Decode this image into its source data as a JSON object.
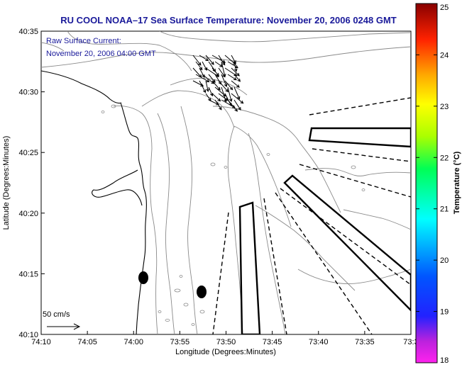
{
  "title": "RU COOL  NOAA–17  Sea Surface Temperature:  November 20, 2006 0248 GMT",
  "annotation": {
    "line1": "Raw Surface Current:",
    "line2": "November 20, 2006 04:00 GMT"
  },
  "scale": {
    "label": "50 cm/s"
  },
  "axes": {
    "xlabel": "Longitude (Degrees:Minutes)",
    "ylabel": "Latitude (Degrees:Minutes)",
    "x_ticks": [
      "74:10",
      "74:05",
      "74:00",
      "73:55",
      "73:50",
      "73:45",
      "73:40",
      "73:35",
      "73:3"
    ],
    "y_ticks": [
      "40:35",
      "40:30",
      "40:25",
      "40:20",
      "40:15",
      "40:10"
    ]
  },
  "colorbar": {
    "label": "Temperature (°C)",
    "ticks": [
      "25",
      "24",
      "23",
      "22",
      "21",
      "20",
      "19",
      "18"
    ],
    "min": 18,
    "max": 25
  },
  "colors": {
    "title": "#1a1a9a",
    "contour": "#8a8a8a",
    "vector": "#000000"
  }
}
